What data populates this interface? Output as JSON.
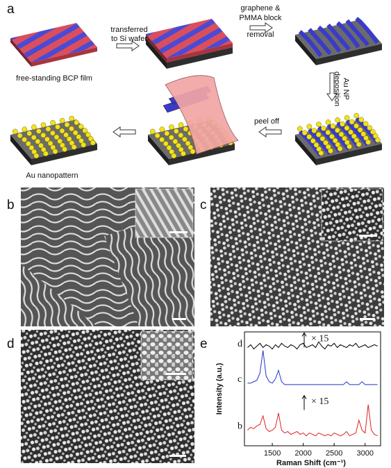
{
  "panel_a": {
    "label": "a",
    "film_caption": "free-standing BCP film",
    "step_1": [
      "transferred",
      "to Si wafer"
    ],
    "step_2": [
      "graphene &",
      "PMMA block",
      "removal"
    ],
    "step_3": [
      "Au NP",
      "deposition"
    ],
    "step_4": "peel off",
    "result_caption": "Au nanopattern"
  },
  "panel_b": {
    "label": "b"
  },
  "panel_c": {
    "label": "c"
  },
  "panel_d": {
    "label": "d"
  },
  "chart_data": {
    "type": "line",
    "panel_label": "e",
    "x_label": "Raman Shift (cm⁻¹)",
    "y_label": "Intensity (a.u.)",
    "x": [
      1100,
      1150,
      1200,
      1250,
      1300,
      1350,
      1400,
      1450,
      1500,
      1550,
      1600,
      1650,
      1700,
      1750,
      1800,
      1850,
      1900,
      1950,
      2000,
      2050,
      2100,
      2150,
      2200,
      2250,
      2300,
      2350,
      2400,
      2450,
      2500,
      2550,
      2600,
      2650,
      2700,
      2750,
      2800,
      2850,
      2900,
      2950,
      3000,
      3050,
      3100,
      3150,
      3200
    ],
    "xlim": [
      1050,
      3250
    ],
    "xticks": [
      1500,
      2000,
      2500,
      3000
    ],
    "ylim": [
      1.5,
      9.5
    ],
    "series": [
      {
        "name": "d",
        "color": "#000000",
        "values": [
          8.4,
          8.6,
          8.3,
          8.5,
          8.7,
          8.4,
          8.6,
          8.5,
          8.3,
          8.6,
          8.4,
          8.7,
          8.5,
          8.4,
          8.6,
          8.5,
          8.3,
          8.6,
          8.7,
          8.4,
          8.5,
          8.6,
          8.4,
          8.8,
          8.5,
          8.3,
          8.6,
          8.5,
          8.7,
          8.4,
          8.6,
          8.5,
          8.4,
          8.6,
          8.5,
          8.7,
          8.4,
          8.5,
          8.6,
          8.4,
          8.5,
          8.6,
          8.5
        ]
      },
      {
        "name": "c",
        "color": "#2233cc",
        "values": [
          5.9,
          5.9,
          6.0,
          6.1,
          6.6,
          8.2,
          6.4,
          6.0,
          5.9,
          6.2,
          6.8,
          6.0,
          5.8,
          5.8,
          5.8,
          5.8,
          5.8,
          5.8,
          5.8,
          5.8,
          5.8,
          5.8,
          5.8,
          5.8,
          5.8,
          5.8,
          5.8,
          5.8,
          5.8,
          5.8,
          5.8,
          5.8,
          6.0,
          5.8,
          5.8,
          5.8,
          5.8,
          6.0,
          5.8,
          5.8,
          5.8,
          5.8,
          5.8
        ]
      },
      {
        "name": "b",
        "color": "#e02020",
        "values": [
          2.6,
          2.8,
          2.7,
          2.9,
          3.0,
          3.6,
          2.7,
          2.5,
          2.6,
          2.8,
          3.8,
          2.6,
          2.4,
          2.5,
          2.3,
          2.4,
          2.5,
          2.3,
          2.4,
          2.2,
          2.4,
          2.3,
          2.2,
          2.4,
          2.3,
          2.2,
          2.3,
          2.2,
          2.4,
          2.3,
          2.2,
          2.3,
          2.5,
          2.2,
          2.3,
          2.4,
          3.3,
          2.6,
          2.4,
          4.4,
          2.6,
          2.3,
          2.2
        ]
      }
    ],
    "annotations": [
      "× 15",
      "× 15"
    ]
  }
}
